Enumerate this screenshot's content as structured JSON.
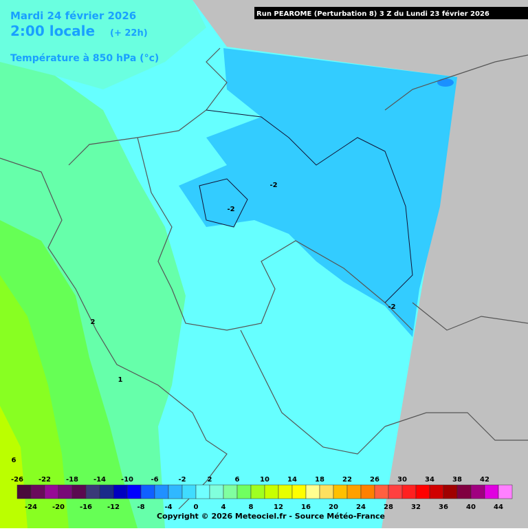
{
  "header": {
    "date": "Mardi 24 février 2026",
    "time": "2:00 locale",
    "lead": "(+ 22h)",
    "field": "Température à 850 hPa (°c)",
    "run": "Run PEAROME (Perturbation 8) 3 Z du Lundi 23 février 2026"
  },
  "contour_labels": [
    "-2",
    "-2",
    "-2",
    "2",
    "1",
    "6"
  ],
  "legend": {
    "top_labels": [
      "-26",
      "-22",
      "-18",
      "-14",
      "-10",
      "-6",
      "-2",
      "2",
      "6",
      "10",
      "14",
      "18",
      "22",
      "26",
      "30",
      "34",
      "38",
      "42"
    ],
    "bottom_labels": [
      "-24",
      "-20",
      "-16",
      "-12",
      "-8",
      "-4",
      "0",
      "4",
      "8",
      "12",
      "16",
      "20",
      "24",
      "28",
      "32",
      "36",
      "40",
      "44"
    ],
    "colors": [
      "#4a0a3c",
      "#6a0a5c",
      "#960a96",
      "#780a78",
      "#5a0a50",
      "#3a3a78",
      "#1a2a8a",
      "#0000c0",
      "#0000ff",
      "#1060ff",
      "#2090ff",
      "#30b8ff",
      "#40dcff",
      "#70ffff",
      "#80ffdc",
      "#80ffa0",
      "#70ff60",
      "#a0ff20",
      "#c8ff00",
      "#e8ff00",
      "#ffff00",
      "#ffff90",
      "#ffe060",
      "#ffc000",
      "#ffa000",
      "#ff8000",
      "#ff6040",
      "#ff4040",
      "#ff2020",
      "#ff0000",
      "#d00000",
      "#a00000",
      "#800040",
      "#a00080",
      "#e000e0",
      "#ff80ff"
    ]
  },
  "footer": {
    "copyright": "Copyright © 2026 Meteociel.fr - Source Météo-France"
  }
}
